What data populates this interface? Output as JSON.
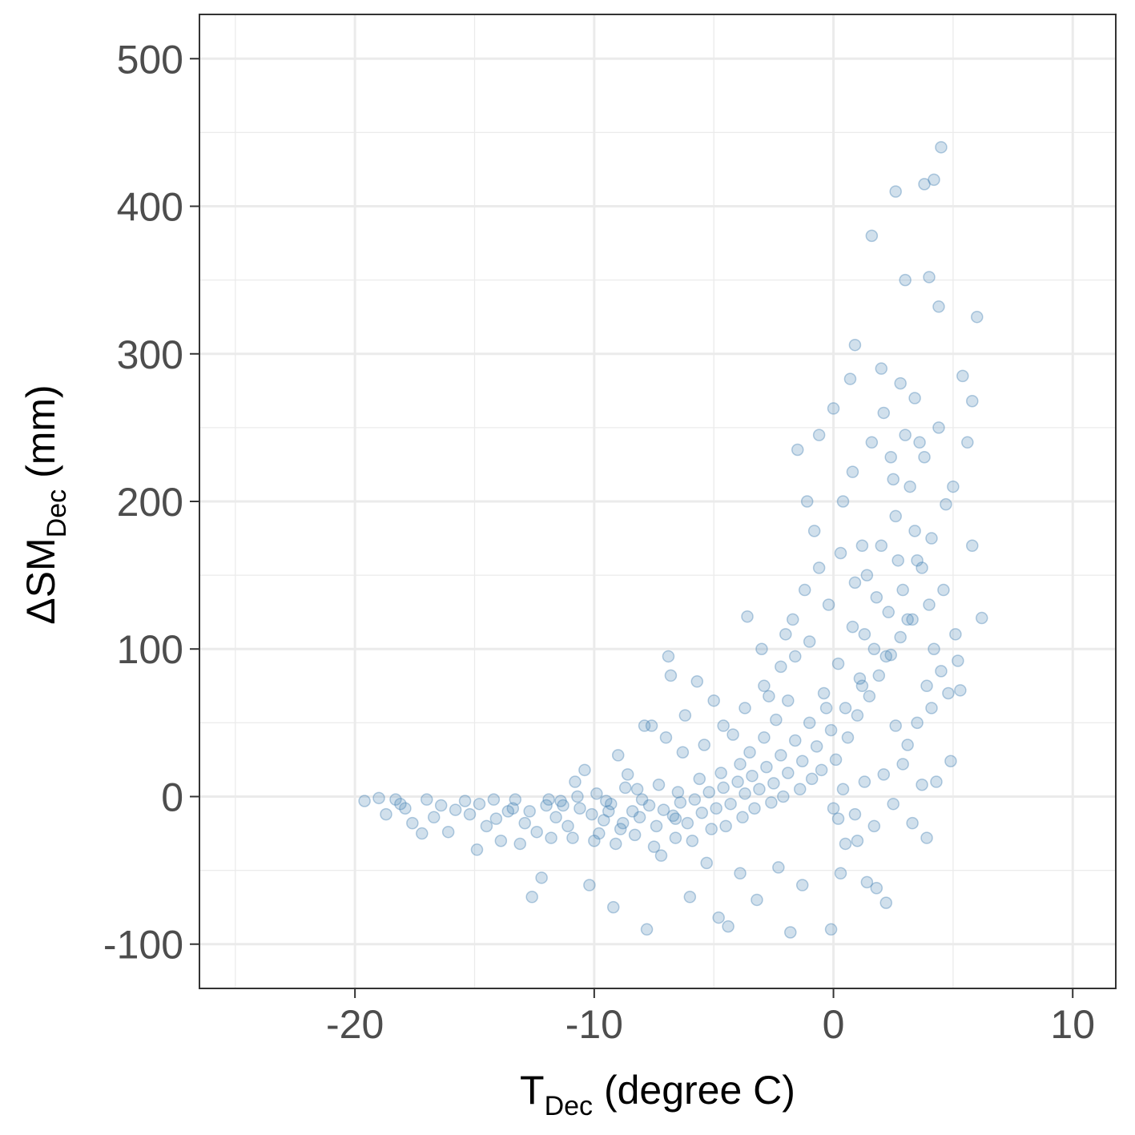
{
  "chart_data": {
    "type": "scatter",
    "title": "",
    "xlabel": {
      "main": "T",
      "sub": "Dec",
      "rest": " (degree C)"
    },
    "ylabel": {
      "main": "ΔSM",
      "sub": "Dec",
      "rest": " (mm)"
    },
    "xlim": [
      -26.5,
      11.8
    ],
    "ylim": [
      -130,
      530
    ],
    "x_ticks": [
      -20,
      -10,
      0,
      10
    ],
    "x_tick_labels": [
      "-20",
      "-10",
      "0",
      "10"
    ],
    "y_ticks": [
      -100,
      0,
      100,
      200,
      300,
      400,
      500
    ],
    "y_tick_labels": [
      "-100",
      "0",
      "100",
      "200",
      "300",
      "400",
      "500"
    ],
    "x_minor_ticks": [
      -25,
      -15,
      -5,
      5
    ],
    "y_minor_ticks": [
      -50,
      50,
      150,
      250,
      350,
      450
    ],
    "grid": true,
    "legend": "none",
    "point_color": "#4682b4",
    "point_opacity": 0.25,
    "series": [
      {
        "points": [
          [
            -19.6,
            -3
          ],
          [
            -19.0,
            -1
          ],
          [
            -18.7,
            -12
          ],
          [
            -18.3,
            -2
          ],
          [
            -17.9,
            -8
          ],
          [
            -17.6,
            -18
          ],
          [
            -17.2,
            -25
          ],
          [
            -17.0,
            -2
          ],
          [
            -16.7,
            -14
          ],
          [
            -16.4,
            -6
          ],
          [
            -16.1,
            -24
          ],
          [
            -15.8,
            -9
          ],
          [
            -15.4,
            -3
          ],
          [
            -14.9,
            -36
          ],
          [
            -14.5,
            -20
          ],
          [
            -14.2,
            -2
          ],
          [
            -13.9,
            -30
          ],
          [
            -13.6,
            -10
          ],
          [
            -13.1,
            -32
          ],
          [
            -12.6,
            -68
          ],
          [
            -12.2,
            -55
          ],
          [
            -11.8,
            -28
          ],
          [
            -11.3,
            -6
          ],
          [
            -10.8,
            10
          ],
          [
            -10.4,
            18
          ],
          [
            -10.2,
            -60
          ],
          [
            -9.8,
            -25
          ],
          [
            -9.4,
            -10
          ],
          [
            -9.2,
            -75
          ],
          [
            -9.0,
            28
          ],
          [
            -8.8,
            -18
          ],
          [
            -8.6,
            15
          ],
          [
            -8.2,
            5
          ],
          [
            -7.8,
            -90
          ],
          [
            -7.6,
            48
          ],
          [
            -7.2,
            -40
          ],
          [
            -6.9,
            95
          ],
          [
            -6.8,
            82
          ],
          [
            -6.6,
            -15
          ],
          [
            -6.3,
            30
          ],
          [
            -6.0,
            -68
          ],
          [
            -5.7,
            78
          ],
          [
            -5.3,
            -45
          ],
          [
            -5.0,
            65
          ],
          [
            -4.8,
            -82
          ],
          [
            -4.4,
            -88
          ],
          [
            -4.2,
            42
          ],
          [
            -3.9,
            -52
          ],
          [
            -3.6,
            122
          ],
          [
            -3.2,
            -70
          ],
          [
            -3.0,
            100
          ],
          [
            -2.7,
            68
          ],
          [
            -2.3,
            -48
          ],
          [
            -2.0,
            110
          ],
          [
            -1.8,
            -92
          ],
          [
            -1.5,
            235
          ],
          [
            -1.3,
            -60
          ],
          [
            -1.1,
            200
          ],
          [
            -0.8,
            180
          ],
          [
            -0.6,
            245
          ],
          [
            -0.3,
            60
          ],
          [
            -0.1,
            -90
          ],
          [
            0.0,
            263
          ],
          [
            0.2,
            -15
          ],
          [
            0.3,
            -52
          ],
          [
            0.5,
            -32
          ],
          [
            0.7,
            283
          ],
          [
            0.9,
            306
          ],
          [
            1.0,
            -30
          ],
          [
            1.2,
            75
          ],
          [
            1.4,
            -58
          ],
          [
            1.6,
            380
          ],
          [
            1.8,
            -62
          ],
          [
            2.0,
            290
          ],
          [
            2.2,
            -72
          ],
          [
            2.4,
            230
          ],
          [
            2.6,
            410
          ],
          [
            2.8,
            280
          ],
          [
            3.0,
            350
          ],
          [
            3.3,
            120
          ],
          [
            3.6,
            240
          ],
          [
            3.8,
            415
          ],
          [
            4.0,
            352
          ],
          [
            4.2,
            418
          ],
          [
            4.4,
            332
          ],
          [
            4.5,
            440
          ],
          [
            4.7,
            198
          ],
          [
            5.0,
            210
          ],
          [
            5.2,
            92
          ],
          [
            5.4,
            285
          ],
          [
            5.6,
            240
          ],
          [
            5.8,
            268
          ],
          [
            6.0,
            325
          ],
          [
            6.2,
            121
          ],
          [
            5.8,
            170
          ],
          [
            5.3,
            72
          ],
          [
            4.9,
            24
          ],
          [
            4.3,
            10
          ],
          [
            3.9,
            -28
          ],
          [
            3.4,
            180
          ],
          [
            -18.1,
            -5
          ],
          [
            -15.2,
            -12
          ],
          [
            -13.4,
            -8
          ],
          [
            -12.9,
            -18
          ],
          [
            -11.6,
            -14
          ],
          [
            -11.1,
            -20
          ],
          [
            -10.6,
            -8
          ],
          [
            -10.1,
            -12
          ],
          [
            -9.6,
            -16
          ],
          [
            -9.3,
            -5
          ],
          [
            -8.9,
            -22
          ],
          [
            -8.4,
            -10
          ],
          [
            -8.1,
            -14
          ],
          [
            -7.7,
            -6
          ],
          [
            -7.4,
            -20
          ],
          [
            -7.1,
            -9
          ],
          [
            -6.7,
            -13
          ],
          [
            -6.4,
            -4
          ],
          [
            -6.1,
            -18
          ],
          [
            -5.8,
            -2
          ],
          [
            -5.5,
            -11
          ],
          [
            -5.2,
            3
          ],
          [
            -4.9,
            -8
          ],
          [
            -4.6,
            6
          ],
          [
            -4.3,
            -5
          ],
          [
            -4.0,
            10
          ],
          [
            -3.7,
            2
          ],
          [
            -3.4,
            14
          ],
          [
            -3.1,
            5
          ],
          [
            -2.8,
            20
          ],
          [
            -2.5,
            9
          ],
          [
            -2.2,
            28
          ],
          [
            -1.9,
            16
          ],
          [
            -1.6,
            38
          ],
          [
            -1.3,
            24
          ],
          [
            -1.0,
            50
          ],
          [
            -0.7,
            34
          ],
          [
            -0.4,
            70
          ],
          [
            -0.1,
            45
          ],
          [
            0.2,
            90
          ],
          [
            0.5,
            60
          ],
          [
            0.8,
            115
          ],
          [
            1.1,
            80
          ],
          [
            1.4,
            150
          ],
          [
            1.7,
            100
          ],
          [
            2.0,
            170
          ],
          [
            2.3,
            125
          ],
          [
            2.6,
            190
          ],
          [
            2.9,
            140
          ],
          [
            3.2,
            210
          ],
          [
            3.5,
            160
          ],
          [
            3.8,
            230
          ],
          [
            4.1,
            175
          ],
          [
            4.4,
            250
          ],
          [
            -12.4,
            -24
          ],
          [
            -11.9,
            -2
          ],
          [
            -10.9,
            -28
          ],
          [
            -10.0,
            -30
          ],
          [
            -9.1,
            -32
          ],
          [
            -8.3,
            -26
          ],
          [
            -7.5,
            -34
          ],
          [
            -6.6,
            -28
          ],
          [
            -5.9,
            -30
          ],
          [
            -5.1,
            -22
          ],
          [
            -4.5,
            -20
          ],
          [
            -3.8,
            -14
          ],
          [
            -3.3,
            -8
          ],
          [
            -2.6,
            -4
          ],
          [
            -2.1,
            0
          ],
          [
            -1.4,
            5
          ],
          [
            -0.9,
            12
          ],
          [
            -0.5,
            18
          ],
          [
            0.1,
            25
          ],
          [
            0.6,
            40
          ],
          [
            1.0,
            55
          ],
          [
            1.5,
            68
          ],
          [
            1.9,
            82
          ],
          [
            2.4,
            96
          ],
          [
            2.8,
            108
          ],
          [
            3.1,
            120
          ],
          [
            0.4,
            200
          ],
          [
            0.8,
            220
          ],
          [
            1.2,
            170
          ],
          [
            1.6,
            240
          ],
          [
            2.1,
            260
          ],
          [
            2.5,
            215
          ],
          [
            3.0,
            245
          ],
          [
            3.4,
            270
          ],
          [
            3.7,
            155
          ],
          [
            4.0,
            130
          ],
          [
            -1.7,
            120
          ],
          [
            -1.2,
            140
          ],
          [
            -0.6,
            155
          ],
          [
            -0.2,
            130
          ],
          [
            0.3,
            165
          ],
          [
            0.9,
            145
          ],
          [
            1.3,
            110
          ],
          [
            1.8,
            135
          ],
          [
            2.2,
            95
          ],
          [
            2.7,
            160
          ],
          [
            -14.8,
            -5
          ],
          [
            -14.1,
            -15
          ],
          [
            -13.3,
            -2
          ],
          [
            -12.7,
            -10
          ],
          [
            -12.0,
            -6
          ],
          [
            -11.4,
            -3
          ],
          [
            -10.7,
            0
          ],
          [
            -9.9,
            2
          ],
          [
            -9.5,
            -3
          ],
          [
            -8.7,
            6
          ],
          [
            -8.0,
            -2
          ],
          [
            -7.3,
            8
          ],
          [
            -6.5,
            3
          ],
          [
            -5.6,
            12
          ],
          [
            -4.7,
            16
          ],
          [
            -3.9,
            22
          ],
          [
            -3.5,
            30
          ],
          [
            -2.9,
            40
          ],
          [
            -2.4,
            52
          ],
          [
            -1.9,
            65
          ],
          [
            0.0,
            -8
          ],
          [
            0.4,
            5
          ],
          [
            0.9,
            -12
          ],
          [
            1.3,
            10
          ],
          [
            1.7,
            -20
          ],
          [
            2.1,
            15
          ],
          [
            2.5,
            -5
          ],
          [
            2.9,
            22
          ],
          [
            3.3,
            -18
          ],
          [
            3.7,
            8
          ],
          [
            4.1,
            60
          ],
          [
            4.5,
            85
          ],
          [
            4.8,
            70
          ],
          [
            5.1,
            110
          ],
          [
            4.6,
            140
          ],
          [
            4.2,
            100
          ],
          [
            3.9,
            75
          ],
          [
            3.5,
            50
          ],
          [
            3.1,
            35
          ],
          [
            2.6,
            48
          ],
          [
            -7.9,
            48
          ],
          [
            -7.0,
            40
          ],
          [
            -6.2,
            55
          ],
          [
            -5.4,
            35
          ],
          [
            -4.6,
            48
          ],
          [
            -3.7,
            60
          ],
          [
            -2.9,
            75
          ],
          [
            -2.2,
            88
          ],
          [
            -1.6,
            95
          ],
          [
            -1.0,
            105
          ]
        ]
      }
    ]
  }
}
